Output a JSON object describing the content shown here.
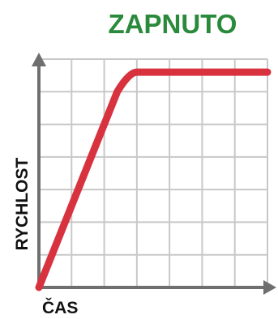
{
  "title": "ZAPNUTO",
  "colors": {
    "title": "#2a8a3c",
    "curve": "#d8323e",
    "axis": "#6f6f6f",
    "grid": "#c8c8c8"
  },
  "chart_data": {
    "type": "line",
    "title": "ZAPNUTO",
    "xlabel": "ČAS",
    "ylabel": "RYCHLOST",
    "grid": true,
    "xlim": [
      0,
      7
    ],
    "ylim": [
      0,
      7
    ],
    "series": [
      {
        "values": [
          [
            0,
            0
          ],
          [
            2.4,
            6.0
          ],
          [
            3.0,
            6.6
          ],
          [
            7.0,
            6.6
          ]
        ]
      }
    ]
  }
}
